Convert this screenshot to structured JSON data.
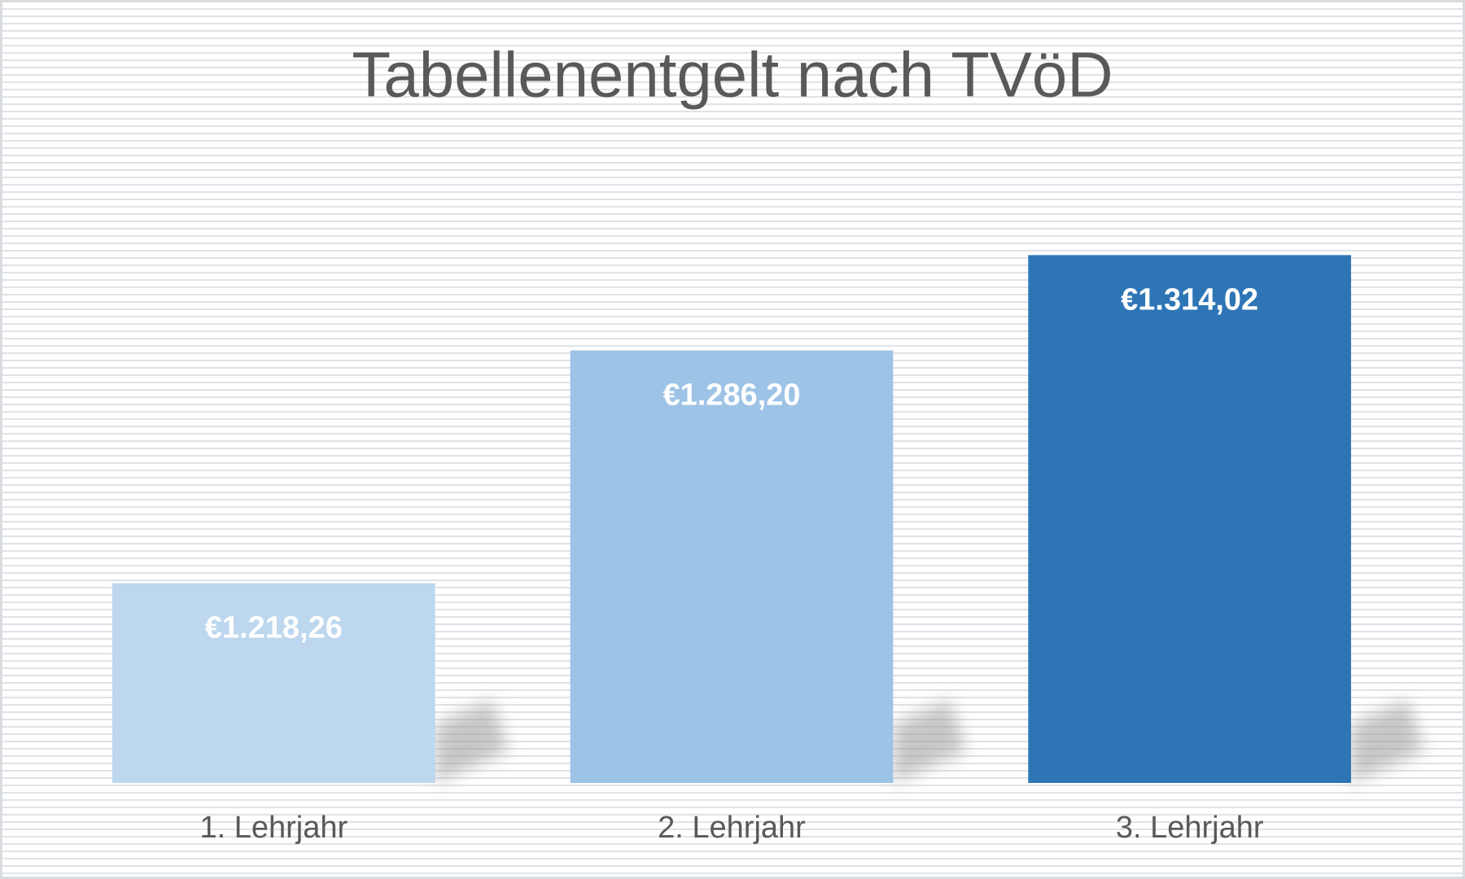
{
  "chart_data": {
    "type": "bar",
    "title": "Tabellenentgelt nach TVöD",
    "categories": [
      "1. Lehrjahr",
      "2. Lehrjahr",
      "3. Lehrjahr"
    ],
    "values": [
      1218.26,
      1286.2,
      1314.02
    ],
    "value_labels": [
      "€1.218,26",
      "€1.286,20",
      "€1.314,02"
    ],
    "colors": [
      "#bdd7ee",
      "#9dc3e6",
      "#2e75b6"
    ],
    "ylim": [
      1160,
      1340
    ]
  }
}
